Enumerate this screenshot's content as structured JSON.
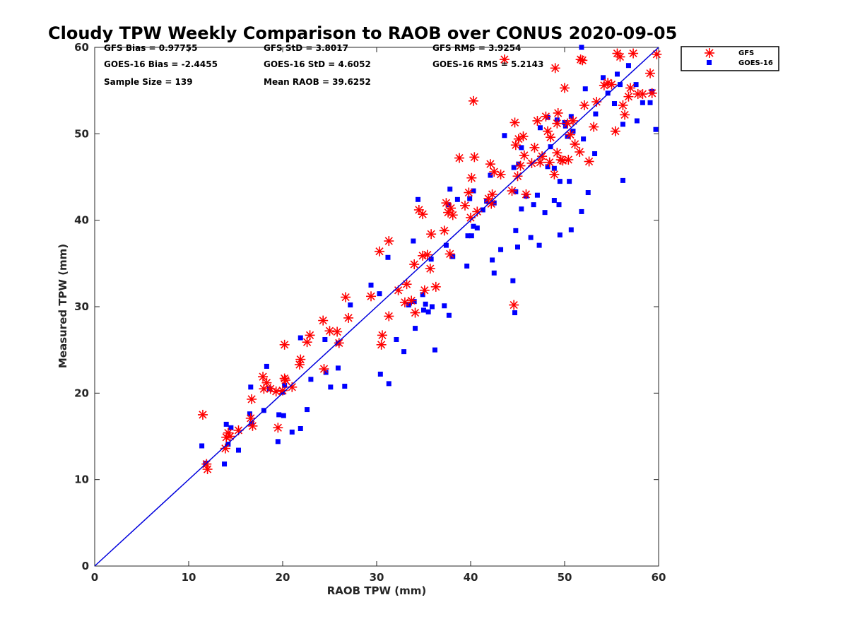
{
  "chart_data": {
    "type": "scatter",
    "title": "Cloudy TPW Weekly Comparison to RAOB over CONUS 2020-09-05",
    "xlabel": "RAOB TPW (mm)",
    "ylabel": "Measured TPW (mm)",
    "xlim": [
      0,
      60
    ],
    "ylim": [
      0,
      60
    ],
    "xticks": [
      0,
      10,
      20,
      30,
      40,
      50,
      60
    ],
    "yticks": [
      0,
      10,
      20,
      30,
      40,
      50,
      60
    ],
    "grid": false,
    "legend_position": "top-right, outside plot",
    "stats": [
      "GFS Bias = 0.97755",
      "GFS StD = 3.8017",
      "GFS RMS = 3.9254",
      "GOES-16 Bias = -2.4455",
      "GOES-16 StD = 4.6052",
      "GOES-16 RMS = 5.2143",
      "Sample Size = 139",
      "Mean RAOB = 39.6252"
    ],
    "reference_line": {
      "from": [
        0,
        0
      ],
      "to": [
        60,
        60
      ],
      "color": "#0000dd"
    },
    "series": [
      {
        "name": "GFS",
        "marker": "asterisk",
        "color": "#ff0000",
        "points": [
          [
            11.5,
            17.5
          ],
          [
            11.9,
            11.8
          ],
          [
            12,
            11.2
          ],
          [
            13.9,
            13.6
          ],
          [
            14,
            14.9
          ],
          [
            14.2,
            15.4
          ],
          [
            14.4,
            15
          ],
          [
            15.3,
            15.7
          ],
          [
            16.6,
            17.1
          ],
          [
            16.8,
            16.2
          ],
          [
            16.7,
            19.3
          ],
          [
            17.9,
            21.9
          ],
          [
            18,
            20.5
          ],
          [
            18.3,
            21.2
          ],
          [
            18.7,
            20.5
          ],
          [
            19.3,
            20.2
          ],
          [
            20,
            20.3
          ],
          [
            20.2,
            21.7
          ],
          [
            20.3,
            21.5
          ],
          [
            20.2,
            25.6
          ],
          [
            19.5,
            16
          ],
          [
            21,
            20.7
          ],
          [
            21.8,
            23.3
          ],
          [
            21.9,
            23.9
          ],
          [
            22.6,
            25.9
          ],
          [
            22.9,
            26.7
          ],
          [
            24.3,
            28.4
          ],
          [
            24.4,
            22.8
          ],
          [
            25,
            27.2
          ],
          [
            25.8,
            27.1
          ],
          [
            26,
            25.8
          ],
          [
            26.7,
            31.1
          ],
          [
            27,
            28.7
          ],
          [
            29.4,
            31.2
          ],
          [
            30.3,
            36.4
          ],
          [
            30.6,
            26.7
          ],
          [
            30.5,
            25.6
          ],
          [
            31.3,
            37.6
          ],
          [
            31.3,
            28.9
          ],
          [
            32.3,
            31.9
          ],
          [
            33,
            30.5
          ],
          [
            33.2,
            32.6
          ],
          [
            33.7,
            30.7
          ],
          [
            34,
            34.9
          ],
          [
            34.1,
            29.3
          ],
          [
            34.5,
            41.2
          ],
          [
            34.9,
            40.7
          ],
          [
            35.1,
            31.9
          ],
          [
            34.9,
            35.9
          ],
          [
            35.4,
            36
          ],
          [
            35.7,
            34.4
          ],
          [
            35.8,
            38.4
          ],
          [
            36.3,
            32.3
          ],
          [
            37.2,
            38.8
          ],
          [
            37.4,
            42
          ],
          [
            37.6,
            40.9
          ],
          [
            37.9,
            41.4
          ],
          [
            37.8,
            36.1
          ],
          [
            38.1,
            40.6
          ],
          [
            38.8,
            47.2
          ],
          [
            39.4,
            41.7
          ],
          [
            39.8,
            43.2
          ],
          [
            40,
            40.3
          ],
          [
            40.1,
            44.9
          ],
          [
            40.3,
            53.8
          ],
          [
            40.4,
            47.3
          ],
          [
            40.7,
            41
          ],
          [
            41.9,
            42.5
          ],
          [
            42.1,
            46.5
          ],
          [
            42.2,
            41.9
          ],
          [
            42.3,
            43
          ],
          [
            42.5,
            45.6
          ],
          [
            43.2,
            45.3
          ],
          [
            43.6,
            58.6
          ],
          [
            44.4,
            43.4
          ],
          [
            44.6,
            30.2
          ],
          [
            44.7,
            51.3
          ],
          [
            44.8,
            48.7
          ],
          [
            45,
            45.1
          ],
          [
            45.1,
            49.4
          ],
          [
            45.3,
            46.3
          ],
          [
            45.6,
            49.7
          ],
          [
            45.7,
            47.5
          ],
          [
            45.9,
            43
          ],
          [
            46.5,
            46.6
          ],
          [
            46.8,
            48.4
          ],
          [
            47.1,
            51.5
          ],
          [
            47.4,
            46.7
          ],
          [
            47.6,
            47.4
          ],
          [
            48,
            52
          ],
          [
            48.2,
            50.3
          ],
          [
            48.4,
            46.7
          ],
          [
            48.5,
            49.6
          ],
          [
            48.9,
            45.3
          ],
          [
            49,
            57.6
          ],
          [
            49.2,
            51.2
          ],
          [
            49.2,
            47.8
          ],
          [
            49.3,
            52.4
          ],
          [
            49.6,
            47
          ],
          [
            49.8,
            46.9
          ],
          [
            50,
            55.3
          ],
          [
            50.3,
            51.2
          ],
          [
            50.4,
            47
          ],
          [
            50.6,
            49.9
          ],
          [
            50.9,
            51.5
          ],
          [
            51.1,
            48.8
          ],
          [
            51.6,
            47.9
          ],
          [
            51.7,
            58.6
          ],
          [
            51.9,
            58.5
          ],
          [
            52.1,
            53.3
          ],
          [
            52.6,
            46.8
          ],
          [
            53.1,
            50.8
          ],
          [
            53.4,
            53.7
          ],
          [
            54.2,
            55.6
          ],
          [
            54.6,
            55.9
          ],
          [
            55,
            55.7
          ],
          [
            55.4,
            50.3
          ],
          [
            55.6,
            59.3
          ],
          [
            55.9,
            58.9
          ],
          [
            56.2,
            53.3
          ],
          [
            56.4,
            52.2
          ],
          [
            56.8,
            54.3
          ],
          [
            57,
            55.3
          ],
          [
            57.3,
            59.3
          ],
          [
            57.8,
            54.6
          ],
          [
            58.3,
            54.6
          ],
          [
            59.1,
            57
          ],
          [
            59.3,
            54.7
          ],
          [
            59.8,
            59.2
          ]
        ]
      },
      {
        "name": "GOES-16",
        "marker": "square",
        "color": "#0000ff",
        "points": [
          [
            11.4,
            13.9
          ],
          [
            11.8,
            11.9
          ],
          [
            13.8,
            11.8
          ],
          [
            14,
            16.4
          ],
          [
            14.2,
            14.1
          ],
          [
            14.5,
            16
          ],
          [
            15.3,
            13.4
          ],
          [
            16.5,
            17.6
          ],
          [
            16.6,
            20.7
          ],
          [
            16.7,
            16.5
          ],
          [
            18,
            18
          ],
          [
            18.3,
            23.1
          ],
          [
            18.6,
            20.5
          ],
          [
            19.5,
            14.4
          ],
          [
            19.6,
            17.5
          ],
          [
            20,
            20.1
          ],
          [
            20.1,
            17.4
          ],
          [
            20.2,
            20.9
          ],
          [
            21,
            15.5
          ],
          [
            21.9,
            15.9
          ],
          [
            21.9,
            26.4
          ],
          [
            22.6,
            18.1
          ],
          [
            23,
            21.6
          ],
          [
            24.5,
            26.2
          ],
          [
            24.6,
            22.4
          ],
          [
            25.1,
            20.7
          ],
          [
            25.9,
            25.8
          ],
          [
            25.9,
            22.9
          ],
          [
            26.6,
            20.8
          ],
          [
            27.2,
            30.2
          ],
          [
            29.4,
            32.5
          ],
          [
            30.3,
            31.5
          ],
          [
            30.4,
            22.2
          ],
          [
            31.2,
            35.7
          ],
          [
            31.3,
            21.1
          ],
          [
            32.1,
            26.2
          ],
          [
            32.9,
            24.8
          ],
          [
            33.4,
            30.2
          ],
          [
            33.9,
            37.6
          ],
          [
            34,
            30.6
          ],
          [
            34.1,
            27.5
          ],
          [
            34.4,
            42.4
          ],
          [
            34.9,
            31.4
          ],
          [
            35,
            29.6
          ],
          [
            35.2,
            30.3
          ],
          [
            35.5,
            29.4
          ],
          [
            35.8,
            35.5
          ],
          [
            35.9,
            30
          ],
          [
            36.2,
            25
          ],
          [
            37.2,
            30.1
          ],
          [
            37.4,
            37.1
          ],
          [
            37.6,
            41.8
          ],
          [
            37.7,
            29
          ],
          [
            37.8,
            43.6
          ],
          [
            38.1,
            35.8
          ],
          [
            38.6,
            42.4
          ],
          [
            39.6,
            34.7
          ],
          [
            39.7,
            38.2
          ],
          [
            39.9,
            42.5
          ],
          [
            40.1,
            38.2
          ],
          [
            40.3,
            43.4
          ],
          [
            40.3,
            39.3
          ],
          [
            40.7,
            39.1
          ],
          [
            41.3,
            41.2
          ],
          [
            41.7,
            42.2
          ],
          [
            42.1,
            45.2
          ],
          [
            42.3,
            35.4
          ],
          [
            42.5,
            33.9
          ],
          [
            42.5,
            42
          ],
          [
            43.2,
            36.6
          ],
          [
            43.6,
            49.8
          ],
          [
            44.5,
            33
          ],
          [
            44.6,
            46.1
          ],
          [
            44.7,
            29.3
          ],
          [
            44.8,
            43.3
          ],
          [
            44.8,
            38.8
          ],
          [
            45,
            36.9
          ],
          [
            45.1,
            46.5
          ],
          [
            45.4,
            48.4
          ],
          [
            45.4,
            41.3
          ],
          [
            45.9,
            42.8
          ],
          [
            46.4,
            38
          ],
          [
            46.7,
            41.8
          ],
          [
            47.1,
            42.9
          ],
          [
            47.3,
            37.1
          ],
          [
            47.4,
            50.7
          ],
          [
            47.9,
            40.9
          ],
          [
            48.2,
            46.2
          ],
          [
            48.2,
            51.9
          ],
          [
            48.5,
            48.5
          ],
          [
            48.9,
            46
          ],
          [
            48.9,
            42.3
          ],
          [
            49.2,
            51.6
          ],
          [
            49.4,
            41.8
          ],
          [
            49.5,
            38.3
          ],
          [
            49.5,
            44.5
          ],
          [
            50,
            51.3
          ],
          [
            50.1,
            50.9
          ],
          [
            50.3,
            49.7
          ],
          [
            50.5,
            44.5
          ],
          [
            50.7,
            52
          ],
          [
            50.7,
            38.9
          ],
          [
            50.9,
            50.3
          ],
          [
            51.8,
            41
          ],
          [
            51.8,
            60
          ],
          [
            52,
            49.4
          ],
          [
            52.2,
            55.2
          ],
          [
            52.5,
            43.2
          ],
          [
            53.2,
            47.7
          ],
          [
            53.3,
            52.3
          ],
          [
            54.1,
            56.5
          ],
          [
            54.6,
            54.7
          ],
          [
            55.3,
            53.5
          ],
          [
            55.6,
            56.9
          ],
          [
            55.9,
            55.7
          ],
          [
            56.2,
            51.1
          ],
          [
            56.2,
            44.6
          ],
          [
            56.8,
            57.9
          ],
          [
            57.6,
            55.7
          ],
          [
            57.7,
            51.5
          ],
          [
            58.3,
            53.6
          ],
          [
            59.1,
            53.6
          ],
          [
            59.3,
            54.9
          ],
          [
            59.7,
            50.5
          ]
        ]
      }
    ]
  }
}
